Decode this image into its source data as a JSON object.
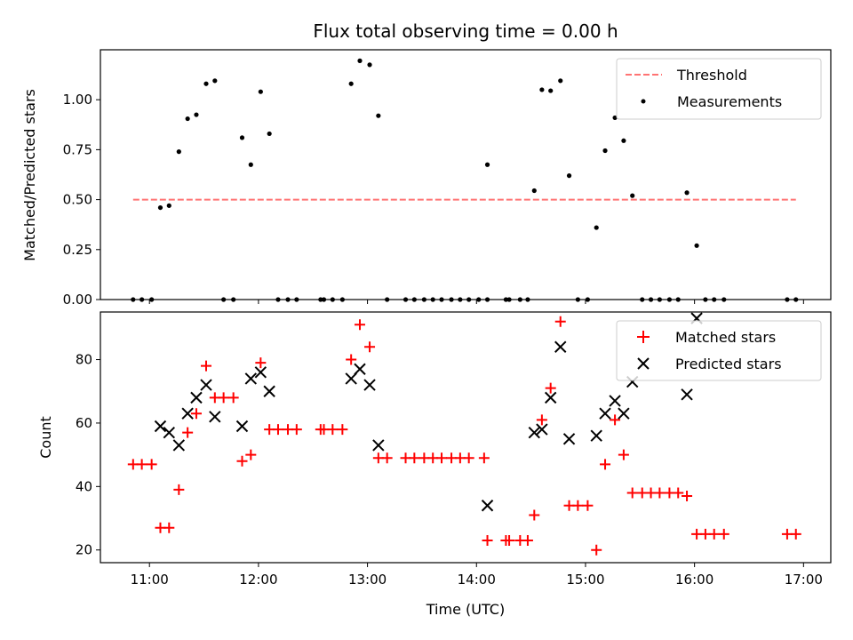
{
  "chart_data": {
    "title": "Flux total observing time = 0.00 h",
    "xlabel": "Time (UTC)",
    "x_ticks": [
      "11:00",
      "12:00",
      "13:00",
      "14:00",
      "15:00",
      "16:00",
      "17:00"
    ],
    "x_tick_hours": [
      11,
      12,
      13,
      14,
      15,
      16,
      17
    ],
    "xlim_hours": [
      10.55,
      17.25
    ],
    "panels": [
      {
        "type": "scatter",
        "ylabel": "Matched/Predicted stars",
        "ylim": [
          0,
          1.25
        ],
        "y_ticks": [
          0.0,
          0.25,
          0.5,
          0.75,
          1.0
        ],
        "y_tick_labels": [
          "0.00",
          "0.25",
          "0.50",
          "0.75",
          "1.00"
        ],
        "threshold": {
          "name": "Threshold",
          "value": 0.5,
          "x_range": [
            10.85,
            16.93
          ],
          "color": "#ff0000"
        },
        "legend_position": "top-right",
        "series": [
          {
            "name": "Measurements",
            "marker": "dot",
            "color": "#000000",
            "points": [
              [
                10.85,
                0
              ],
              [
                10.93,
                0
              ],
              [
                11.02,
                0
              ],
              [
                11.1,
                0.46
              ],
              [
                11.18,
                0.47
              ],
              [
                11.27,
                0.74
              ],
              [
                11.35,
                0.905
              ],
              [
                11.43,
                0.925
              ],
              [
                11.52,
                1.08
              ],
              [
                11.6,
                1.095
              ],
              [
                11.68,
                0
              ],
              [
                11.77,
                0
              ],
              [
                11.85,
                0.81
              ],
              [
                11.93,
                0.675
              ],
              [
                12.02,
                1.04
              ],
              [
                12.1,
                0.83
              ],
              [
                12.18,
                0
              ],
              [
                12.27,
                0
              ],
              [
                12.35,
                0
              ],
              [
                12.57,
                0
              ],
              [
                12.6,
                0
              ],
              [
                12.68,
                0
              ],
              [
                12.77,
                0
              ],
              [
                12.85,
                1.08
              ],
              [
                12.93,
                1.195
              ],
              [
                13.02,
                1.175
              ],
              [
                13.1,
                0.92
              ],
              [
                13.18,
                0
              ],
              [
                13.35,
                0
              ],
              [
                13.43,
                0
              ],
              [
                13.52,
                0
              ],
              [
                13.6,
                0
              ],
              [
                13.68,
                0
              ],
              [
                13.77,
                0
              ],
              [
                13.85,
                0
              ],
              [
                13.93,
                0
              ],
              [
                14.02,
                0
              ],
              [
                14.1,
                0
              ],
              [
                14.1,
                0.675
              ],
              [
                14.27,
                0
              ],
              [
                14.3,
                0
              ],
              [
                14.4,
                0
              ],
              [
                14.47,
                0
              ],
              [
                14.53,
                0.545
              ],
              [
                14.6,
                1.05
              ],
              [
                14.68,
                1.045
              ],
              [
                14.77,
                1.095
              ],
              [
                14.85,
                0.62
              ],
              [
                14.93,
                0
              ],
              [
                15.02,
                0
              ],
              [
                15.1,
                0.36
              ],
              [
                15.18,
                0.745
              ],
              [
                15.27,
                0.91
              ],
              [
                15.35,
                0.795
              ],
              [
                15.43,
                0.52
              ],
              [
                15.52,
                0
              ],
              [
                15.6,
                0
              ],
              [
                15.68,
                0
              ],
              [
                15.77,
                0
              ],
              [
                15.85,
                0
              ],
              [
                15.93,
                0.535
              ],
              [
                16.02,
                0.27
              ],
              [
                16.1,
                0
              ],
              [
                16.18,
                0
              ],
              [
                16.27,
                0
              ],
              [
                16.85,
                0
              ],
              [
                16.93,
                0
              ]
            ]
          }
        ]
      },
      {
        "type": "scatter",
        "ylabel": "Count",
        "ylim": [
          16,
          95
        ],
        "y_ticks": [
          20,
          40,
          60,
          80
        ],
        "y_tick_labels": [
          "20",
          "40",
          "60",
          "80"
        ],
        "legend_position": "top-right",
        "series": [
          {
            "name": "Matched stars",
            "marker": "plus",
            "color": "#ff0000",
            "points": [
              [
                10.85,
                47
              ],
              [
                10.93,
                47
              ],
              [
                11.02,
                47
              ],
              [
                11.1,
                27
              ],
              [
                11.18,
                27
              ],
              [
                11.27,
                39
              ],
              [
                11.35,
                57
              ],
              [
                11.43,
                63
              ],
              [
                11.52,
                78
              ],
              [
                11.6,
                68
              ],
              [
                11.68,
                68
              ],
              [
                11.77,
                68
              ],
              [
                11.85,
                48
              ],
              [
                11.93,
                50
              ],
              [
                12.02,
                79
              ],
              [
                12.1,
                58
              ],
              [
                12.18,
                58
              ],
              [
                12.27,
                58
              ],
              [
                12.35,
                58
              ],
              [
                12.57,
                58
              ],
              [
                12.6,
                58
              ],
              [
                12.68,
                58
              ],
              [
                12.77,
                58
              ],
              [
                12.85,
                80
              ],
              [
                12.93,
                91
              ],
              [
                13.02,
                84
              ],
              [
                13.1,
                49
              ],
              [
                13.18,
                49
              ],
              [
                13.35,
                49
              ],
              [
                13.43,
                49
              ],
              [
                13.52,
                49
              ],
              [
                13.6,
                49
              ],
              [
                13.68,
                49
              ],
              [
                13.77,
                49
              ],
              [
                13.85,
                49
              ],
              [
                13.93,
                49
              ],
              [
                14.07,
                49
              ],
              [
                14.1,
                23
              ],
              [
                14.27,
                23
              ],
              [
                14.3,
                23
              ],
              [
                14.4,
                23
              ],
              [
                14.47,
                23
              ],
              [
                14.53,
                31
              ],
              [
                14.6,
                61
              ],
              [
                14.68,
                71
              ],
              [
                14.77,
                92
              ],
              [
                14.85,
                34
              ],
              [
                14.93,
                34
              ],
              [
                15.02,
                34
              ],
              [
                15.1,
                20
              ],
              [
                15.18,
                47
              ],
              [
                15.27,
                61
              ],
              [
                15.35,
                50
              ],
              [
                15.43,
                38
              ],
              [
                15.52,
                38
              ],
              [
                15.6,
                38
              ],
              [
                15.68,
                38
              ],
              [
                15.77,
                38
              ],
              [
                15.85,
                38
              ],
              [
                15.93,
                37
              ],
              [
                16.02,
                25
              ],
              [
                16.1,
                25
              ],
              [
                16.18,
                25
              ],
              [
                16.27,
                25
              ],
              [
                16.85,
                25
              ],
              [
                16.93,
                25
              ]
            ]
          },
          {
            "name": "Predicted stars",
            "marker": "x",
            "color": "#000000",
            "points": [
              [
                11.1,
                59
              ],
              [
                11.18,
                57
              ],
              [
                11.27,
                53
              ],
              [
                11.35,
                63
              ],
              [
                11.43,
                68
              ],
              [
                11.52,
                72
              ],
              [
                11.6,
                62
              ],
              [
                11.85,
                59
              ],
              [
                11.93,
                74
              ],
              [
                12.02,
                76
              ],
              [
                12.1,
                70
              ],
              [
                12.85,
                74
              ],
              [
                12.93,
                77
              ],
              [
                13.02,
                72
              ],
              [
                13.1,
                53
              ],
              [
                14.1,
                34
              ],
              [
                14.53,
                57
              ],
              [
                14.6,
                58
              ],
              [
                14.68,
                68
              ],
              [
                14.77,
                84
              ],
              [
                14.85,
                55
              ],
              [
                15.1,
                56
              ],
              [
                15.18,
                63
              ],
              [
                15.27,
                67
              ],
              [
                15.35,
                63
              ],
              [
                15.43,
                73
              ],
              [
                15.93,
                69
              ],
              [
                16.02,
                93
              ]
            ]
          }
        ]
      }
    ]
  }
}
